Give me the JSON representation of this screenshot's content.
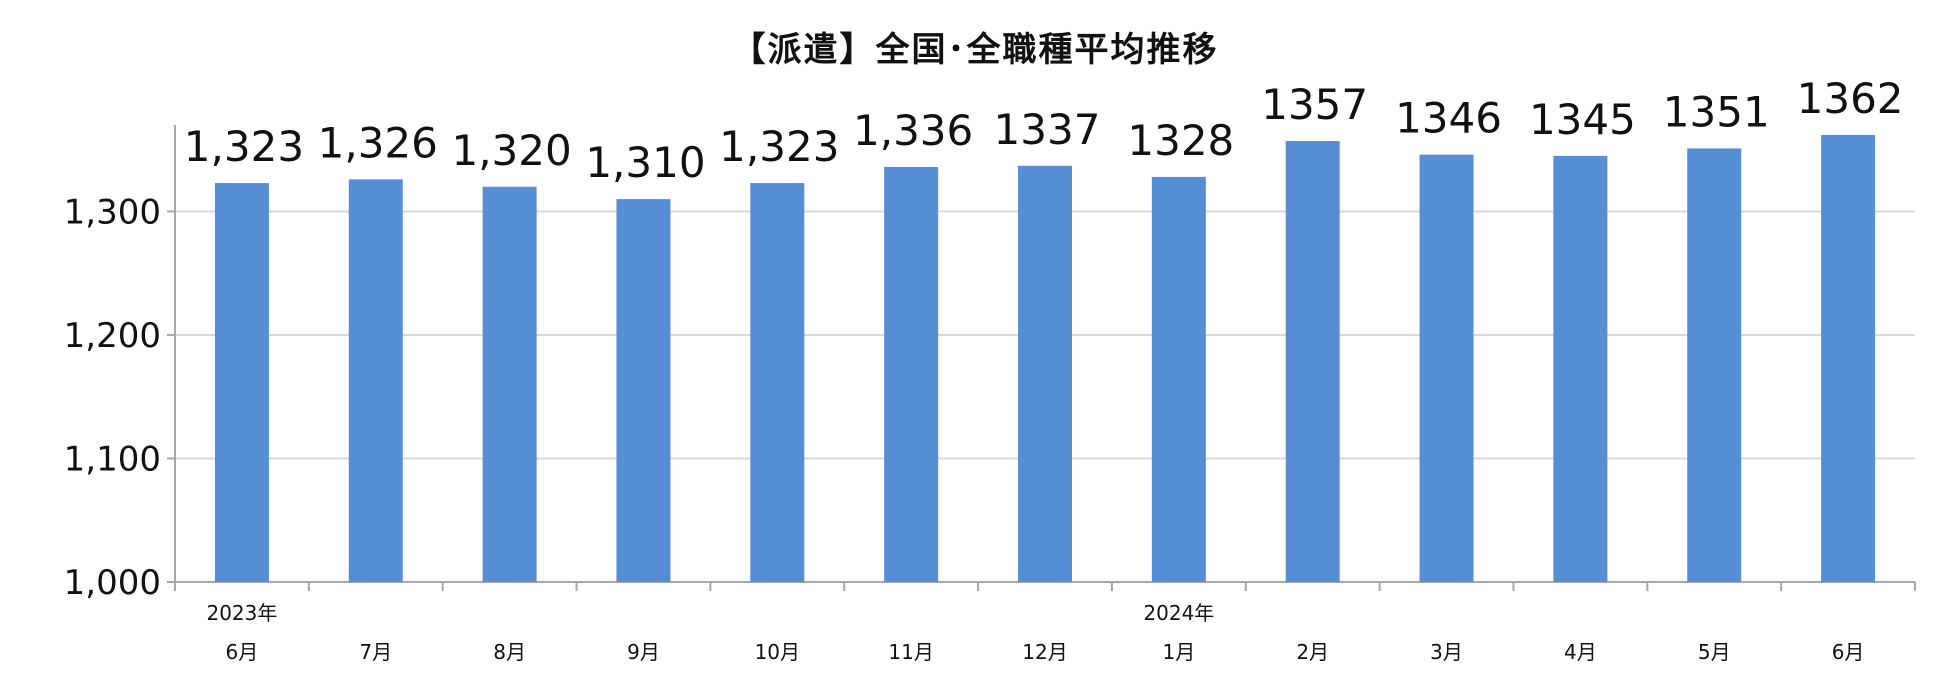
{
  "chart_data": {
    "type": "bar",
    "title": "【派遣】全国･全職種平均推移",
    "xlabel": "",
    "ylabel": "",
    "categories": [
      "6月",
      "7月",
      "8月",
      "9月",
      "10月",
      "11月",
      "12月",
      "1月",
      "2月",
      "3月",
      "4月",
      "5月",
      "6月"
    ],
    "year_labels": [
      "2023年",
      "",
      "",
      "",
      "",
      "",
      "",
      "2024年",
      "",
      "",
      "",
      "",
      ""
    ],
    "series": [
      {
        "values": [
          1323,
          1326,
          1320,
          1310,
          1323,
          1336,
          1337,
          1328,
          1357,
          1346,
          1345,
          1351,
          1362
        ],
        "data_labels": [
          "1,323",
          "1,326",
          "1,320",
          "1,310",
          "1,323",
          "1,336",
          "1337",
          "1328",
          "1357",
          "1346",
          "1345",
          "1351",
          "1362"
        ]
      }
    ],
    "ylim": [
      1000,
      1370
    ],
    "yticks": [
      1000,
      1100,
      1200,
      1300
    ],
    "ytick_labels": [
      "1,000",
      "1,100",
      "1,200",
      "1,300"
    ],
    "grid": true,
    "bar_color": "#558ed5",
    "grid_color": "#d9d9d9",
    "axis_color": "#a6a6a6"
  }
}
